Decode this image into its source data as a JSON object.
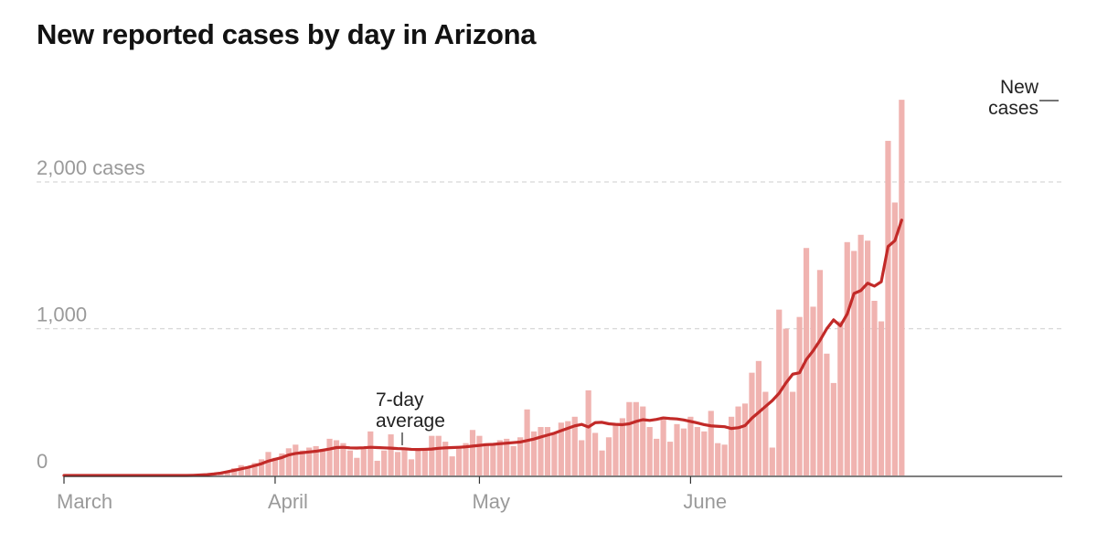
{
  "chart_data": {
    "type": "bar",
    "title": "New reported cases by day in Arizona",
    "xlabel": "",
    "ylabel": "",
    "ylim": [
      0,
      2600
    ],
    "grid": true,
    "start_date": "2020-03-01",
    "x_ticks": [
      {
        "label": "March",
        "date": "2020-03-01"
      },
      {
        "label": "April",
        "date": "2020-04-01"
      },
      {
        "label": "May",
        "date": "2020-05-01"
      },
      {
        "label": "June",
        "date": "2020-06-01"
      }
    ],
    "y_ticks": [
      {
        "label": "0",
        "value": 0
      },
      {
        "label": "1,000",
        "value": 1000
      },
      {
        "label": "2,000 cases",
        "value": 2000
      }
    ],
    "series": [
      {
        "name": "New cases",
        "type": "bar",
        "color": "#f0b3b0",
        "values": [
          0,
          0,
          0,
          0,
          0,
          0,
          0,
          0,
          0,
          0,
          0,
          0,
          0,
          0,
          0,
          0,
          0,
          0,
          0,
          0,
          3,
          6,
          10,
          18,
          30,
          50,
          70,
          60,
          85,
          110,
          160,
          120,
          150,
          185,
          210,
          170,
          190,
          200,
          180,
          250,
          240,
          220,
          170,
          120,
          180,
          300,
          100,
          170,
          280,
          160,
          190,
          110,
          180,
          170,
          270,
          270,
          230,
          130,
          200,
          220,
          310,
          270,
          220,
          210,
          240,
          250,
          200,
          260,
          450,
          300,
          330,
          330,
          290,
          360,
          370,
          400,
          240,
          580,
          290,
          170,
          260,
          350,
          390,
          500,
          500,
          470,
          330,
          250,
          400,
          230,
          350,
          320,
          400,
          330,
          300,
          440,
          220,
          210,
          400,
          470,
          490,
          700,
          780,
          570,
          190,
          1130,
          1000,
          570,
          1080,
          1550,
          1150,
          1400,
          830,
          630,
          1050,
          1590,
          1530,
          1640,
          1600,
          1190,
          1050,
          2280,
          1860,
          2560
        ]
      },
      {
        "name": "7-day average",
        "type": "line",
        "color": "#c22a28",
        "values": [
          0,
          0,
          0,
          0,
          0,
          0,
          0,
          0,
          0,
          0,
          0,
          0,
          0,
          0,
          0,
          0,
          0,
          0,
          0,
          1,
          3,
          6,
          10,
          16,
          25,
          35,
          45,
          55,
          67,
          80,
          98,
          110,
          122,
          140,
          150,
          155,
          160,
          165,
          172,
          180,
          190,
          192,
          188,
          187,
          189,
          192,
          190,
          188,
          186,
          183,
          182,
          178,
          177,
          178,
          180,
          185,
          188,
          190,
          192,
          195,
          200,
          205,
          210,
          212,
          216,
          220,
          224,
          228,
          238,
          248,
          262,
          275,
          288,
          305,
          322,
          338,
          348,
          330,
          360,
          362,
          352,
          348,
          346,
          352,
          368,
          380,
          375,
          382,
          392,
          388,
          385,
          378,
          368,
          358,
          346,
          338,
          335,
          332,
          320,
          325,
          340,
          390,
          430,
          470,
          510,
          560,
          630,
          690,
          700,
          790,
          850,
          920,
          1000,
          1060,
          1020,
          1100,
          1240,
          1260,
          1310,
          1290,
          1320,
          1560,
          1600,
          1740
        ]
      }
    ],
    "annotations": [
      {
        "lines": [
          "New",
          "cases"
        ]
      },
      {
        "lines": [
          "7-day",
          "average"
        ]
      }
    ]
  }
}
